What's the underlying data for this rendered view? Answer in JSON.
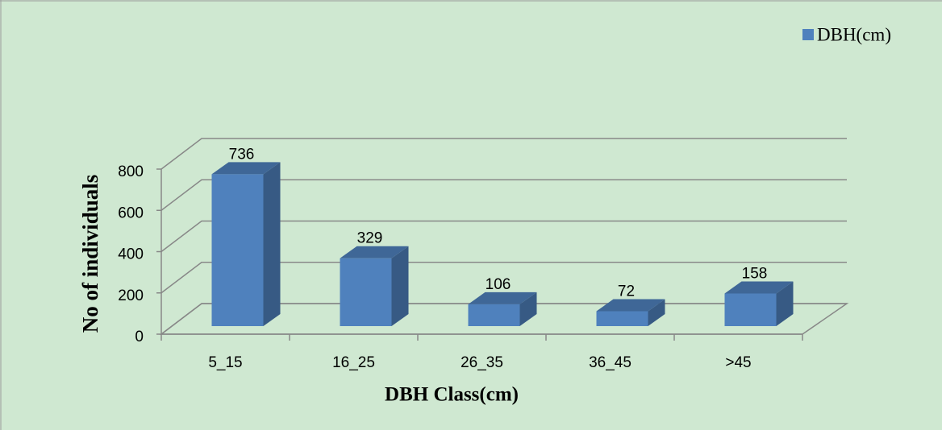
{
  "chart_data": {
    "type": "bar3d",
    "categories": [
      "5_15",
      "16_25",
      "26_35",
      "36_45",
      ">45"
    ],
    "series": [
      {
        "name": "DBH(cm)",
        "color": "#4f81bd",
        "values": [
          736,
          329,
          106,
          72,
          158
        ]
      }
    ],
    "ylim": [
      0,
      800
    ],
    "yticks": [
      0,
      200,
      400,
      600,
      800
    ],
    "grid": true,
    "xlabel": "DBH Class(cm)",
    "ylabel": "No of individuals",
    "legend": "top-right"
  }
}
